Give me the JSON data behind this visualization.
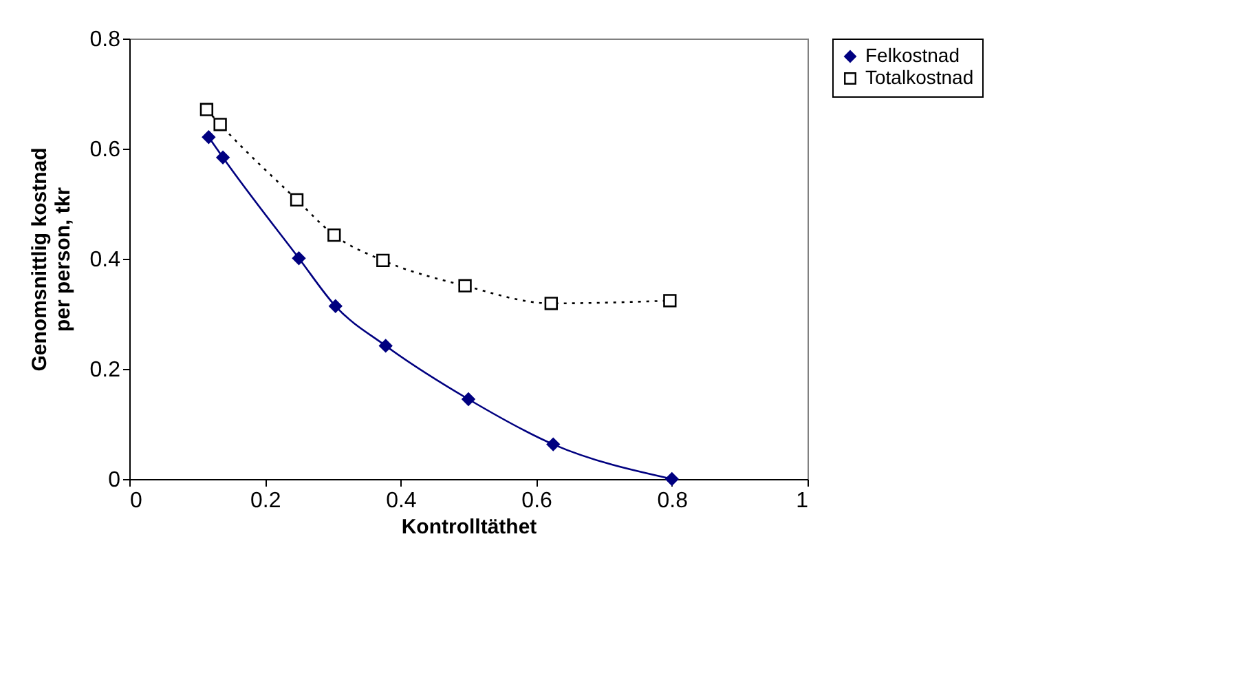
{
  "chart_data": {
    "type": "line",
    "xlabel": "Kontrolltäthet",
    "ylabel": "Genomsnittlig kostnad per person, tkr",
    "xlim": [
      0,
      1
    ],
    "xticks": [
      0,
      0.2,
      0.4,
      0.6,
      0.8,
      1
    ],
    "ylim": [
      0,
      0.8
    ],
    "yticks": [
      0,
      0.2,
      0.4,
      0.6,
      0.8
    ],
    "grid": false,
    "legend": "right",
    "series": [
      {
        "name": "Felkostnad",
        "color": "#000080",
        "marker": "diamond",
        "line_style": "solid",
        "x": [
          0.117,
          0.138,
          0.25,
          0.304,
          0.378,
          0.5,
          0.625,
          0.8
        ],
        "values": [
          0.621,
          0.584,
          0.401,
          0.314,
          0.242,
          0.145,
          0.063,
          0
        ]
      },
      {
        "name": "Totalkostnad",
        "color": "#000000",
        "marker": "square",
        "line_style": "dotted",
        "x": [
          0.114,
          0.134,
          0.247,
          0.302,
          0.374,
          0.495,
          0.622,
          0.797
        ],
        "values": [
          0.671,
          0.644,
          0.507,
          0.443,
          0.397,
          0.351,
          0.319,
          0.324
        ]
      }
    ]
  }
}
